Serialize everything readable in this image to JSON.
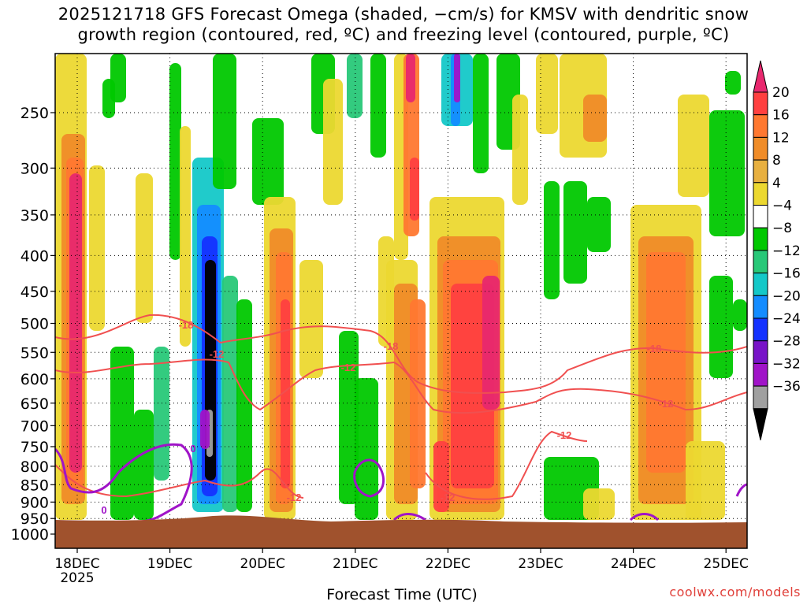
{
  "title": {
    "line1": "2025121718 GFS Forecast Omega (shaded, −cm/s) for KMSV with dendritic snow",
    "line2": "growth region (contoured, red, ºC) and freezing level (contoured, purple, ºC)"
  },
  "credit": "coolwx.com/models",
  "chart_data": {
    "type": "heatmap",
    "xlabel": "Forecast Time (UTC)",
    "ylabel": "",
    "y_scale": "log-pressure (hPa), inverted",
    "y_ticks": [
      250,
      300,
      350,
      400,
      450,
      500,
      550,
      600,
      650,
      700,
      750,
      800,
      850,
      900,
      950,
      1000
    ],
    "x_ticks": [
      {
        "label": "18DEC",
        "sublabel": "2025"
      },
      {
        "label": "19DEC",
        "sublabel": ""
      },
      {
        "label": "20DEC",
        "sublabel": ""
      },
      {
        "label": "21DEC",
        "sublabel": ""
      },
      {
        "label": "22DEC",
        "sublabel": ""
      },
      {
        "label": "23DEC",
        "sublabel": ""
      },
      {
        "label": "24DEC",
        "sublabel": ""
      },
      {
        "label": "25DEC",
        "sublabel": ""
      }
    ],
    "grid": true,
    "colorbar": {
      "labels": [
        "20",
        "16",
        "12",
        "8",
        "4",
        "−4",
        "−8",
        "−12",
        "−16",
        "−20",
        "−24",
        "−28",
        "−32",
        "−36"
      ],
      "colors": [
        "#e8286e",
        "#ff4040",
        "#ff7830",
        "#f08c28",
        "#e8b040",
        "#ecd830",
        "#ffffff",
        "#00c800",
        "#28c878",
        "#14c8c8",
        "#148cff",
        "#1432ff",
        "#7814c8",
        "#a014c8",
        "#a0a0a0",
        "#000000"
      ]
    },
    "terrain_color": "#a0522d",
    "contours": [
      {
        "name": "dendritic snow growth region",
        "color": "#f05050",
        "labels": [
          "-18",
          "-12",
          "-18",
          "-12",
          "-12",
          "-18",
          "-12",
          "-12",
          "-12"
        ]
      },
      {
        "name": "freezing level",
        "color": "#a014c8",
        "labels": [
          "0",
          "0"
        ]
      }
    ]
  }
}
